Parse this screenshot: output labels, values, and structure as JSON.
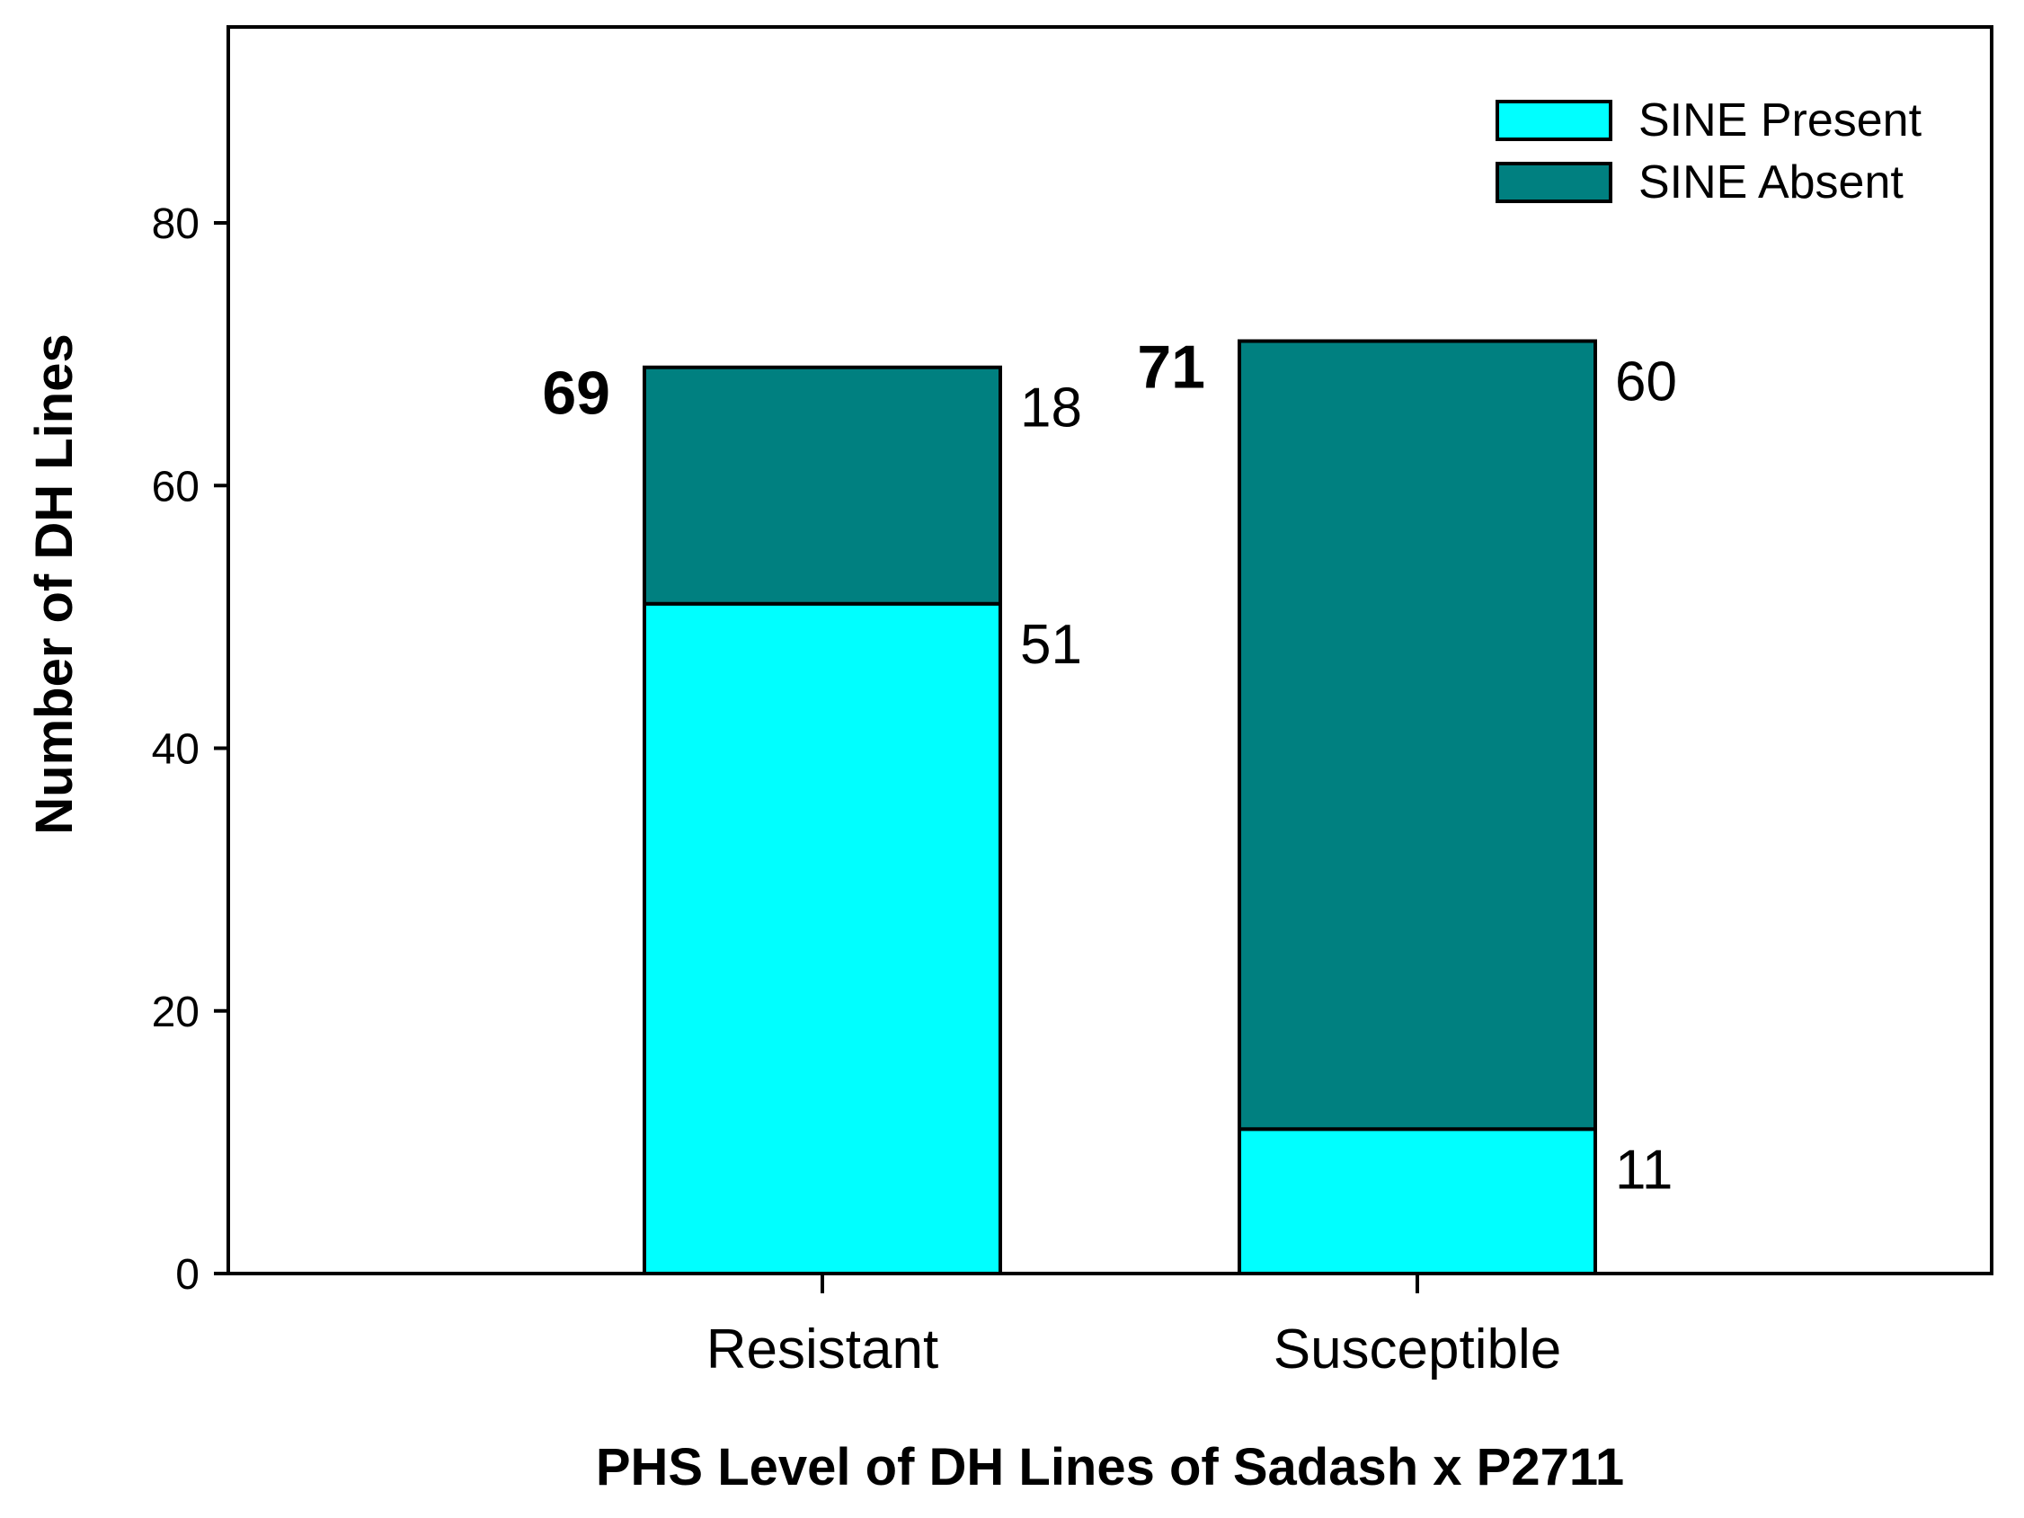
{
  "chart_data": {
    "type": "bar",
    "stacked": true,
    "categories": [
      "Resistant",
      "Susceptible"
    ],
    "series": [
      {
        "name": "SINE Present",
        "values": [
          51,
          11
        ],
        "color": "#00ffff"
      },
      {
        "name": "SINE Absent",
        "values": [
          18,
          60
        ],
        "color": "#008080"
      }
    ],
    "totals": [
      69,
      71
    ],
    "segment_labels": [
      [
        "51",
        "18"
      ],
      [
        "11",
        "60"
      ]
    ],
    "total_labels": [
      "69",
      "71"
    ],
    "title": "",
    "xlabel": "PHS Level of DH Lines of Sadash x P2711",
    "ylabel": "Number of DH Lines",
    "ylim": [
      0,
      95
    ],
    "yticks": [
      0,
      20,
      40,
      60,
      80
    ],
    "ytick_labels": [
      "0",
      "20",
      "40",
      "60",
      "80"
    ],
    "grid": false,
    "legend_position": "top-right"
  }
}
